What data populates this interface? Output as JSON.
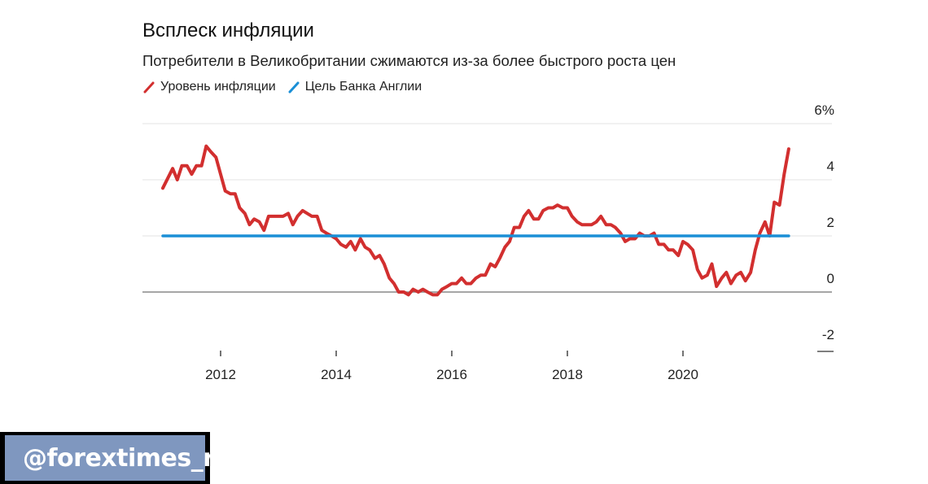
{
  "chart_data": {
    "type": "line",
    "title": "Всплеск инфляции",
    "subtitle": "Потребители в Великобритании сжимаются из-за более быстрого роста цен",
    "ylim": [
      -2,
      6
    ],
    "yticks": [
      -2,
      0,
      2,
      4,
      6
    ],
    "ytick_labels": [
      "-2",
      "0",
      "2",
      "4",
      "6%"
    ],
    "xlim": [
      2011.0,
      2022.2
    ],
    "xticks": [
      2012,
      2014,
      2016,
      2018,
      2020
    ],
    "xtick_labels": [
      "2012",
      "2014",
      "2016",
      "2018",
      "2020"
    ],
    "grid": true,
    "legend": "top-left",
    "series": [
      {
        "name": "Уровень инфляции",
        "color": "#d22f2f",
        "points": [
          [
            2011.0,
            3.7
          ],
          [
            2011.17,
            4.4
          ],
          [
            2011.25,
            4.0
          ],
          [
            2011.33,
            4.5
          ],
          [
            2011.42,
            4.5
          ],
          [
            2011.5,
            4.2
          ],
          [
            2011.58,
            4.5
          ],
          [
            2011.67,
            4.5
          ],
          [
            2011.75,
            5.2
          ],
          [
            2011.83,
            5.0
          ],
          [
            2011.92,
            4.8
          ],
          [
            2012.0,
            4.2
          ],
          [
            2012.08,
            3.6
          ],
          [
            2012.17,
            3.5
          ],
          [
            2012.25,
            3.5
          ],
          [
            2012.33,
            3.0
          ],
          [
            2012.42,
            2.8
          ],
          [
            2012.5,
            2.4
          ],
          [
            2012.58,
            2.6
          ],
          [
            2012.67,
            2.5
          ],
          [
            2012.75,
            2.2
          ],
          [
            2012.83,
            2.7
          ],
          [
            2012.92,
            2.7
          ],
          [
            2013.0,
            2.7
          ],
          [
            2013.08,
            2.7
          ],
          [
            2013.17,
            2.8
          ],
          [
            2013.25,
            2.4
          ],
          [
            2013.33,
            2.7
          ],
          [
            2013.42,
            2.9
          ],
          [
            2013.5,
            2.8
          ],
          [
            2013.58,
            2.7
          ],
          [
            2013.67,
            2.7
          ],
          [
            2013.75,
            2.2
          ],
          [
            2013.83,
            2.1
          ],
          [
            2013.92,
            2.0
          ],
          [
            2014.0,
            1.9
          ],
          [
            2014.08,
            1.7
          ],
          [
            2014.17,
            1.6
          ],
          [
            2014.25,
            1.8
          ],
          [
            2014.33,
            1.5
          ],
          [
            2014.42,
            1.9
          ],
          [
            2014.5,
            1.6
          ],
          [
            2014.58,
            1.5
          ],
          [
            2014.67,
            1.2
          ],
          [
            2014.75,
            1.3
          ],
          [
            2014.83,
            1.0
          ],
          [
            2014.92,
            0.5
          ],
          [
            2015.0,
            0.3
          ],
          [
            2015.08,
            0.0
          ],
          [
            2015.17,
            0.0
          ],
          [
            2015.25,
            -0.1
          ],
          [
            2015.33,
            0.1
          ],
          [
            2015.42,
            0.0
          ],
          [
            2015.5,
            0.1
          ],
          [
            2015.58,
            0.0
          ],
          [
            2015.67,
            -0.1
          ],
          [
            2015.75,
            -0.1
          ],
          [
            2015.83,
            0.1
          ],
          [
            2015.92,
            0.2
          ],
          [
            2016.0,
            0.3
          ],
          [
            2016.08,
            0.3
          ],
          [
            2016.17,
            0.5
          ],
          [
            2016.25,
            0.3
          ],
          [
            2016.33,
            0.3
          ],
          [
            2016.42,
            0.5
          ],
          [
            2016.5,
            0.6
          ],
          [
            2016.58,
            0.6
          ],
          [
            2016.67,
            1.0
          ],
          [
            2016.75,
            0.9
          ],
          [
            2016.83,
            1.2
          ],
          [
            2016.92,
            1.6
          ],
          [
            2017.0,
            1.8
          ],
          [
            2017.08,
            2.3
          ],
          [
            2017.17,
            2.3
          ],
          [
            2017.25,
            2.7
          ],
          [
            2017.33,
            2.9
          ],
          [
            2017.42,
            2.6
          ],
          [
            2017.5,
            2.6
          ],
          [
            2017.58,
            2.9
          ],
          [
            2017.67,
            3.0
          ],
          [
            2017.75,
            3.0
          ],
          [
            2017.83,
            3.1
          ],
          [
            2017.92,
            3.0
          ],
          [
            2018.0,
            3.0
          ],
          [
            2018.08,
            2.7
          ],
          [
            2018.17,
            2.5
          ],
          [
            2018.25,
            2.4
          ],
          [
            2018.33,
            2.4
          ],
          [
            2018.42,
            2.4
          ],
          [
            2018.5,
            2.5
          ],
          [
            2018.58,
            2.7
          ],
          [
            2018.67,
            2.4
          ],
          [
            2018.75,
            2.4
          ],
          [
            2018.83,
            2.3
          ],
          [
            2018.92,
            2.1
          ],
          [
            2019.0,
            1.8
          ],
          [
            2019.08,
            1.9
          ],
          [
            2019.17,
            1.9
          ],
          [
            2019.25,
            2.1
          ],
          [
            2019.33,
            2.0
          ],
          [
            2019.42,
            2.0
          ],
          [
            2019.5,
            2.1
          ],
          [
            2019.58,
            1.7
          ],
          [
            2019.67,
            1.7
          ],
          [
            2019.75,
            1.5
          ],
          [
            2019.83,
            1.5
          ],
          [
            2019.92,
            1.3
          ],
          [
            2020.0,
            1.8
          ],
          [
            2020.08,
            1.7
          ],
          [
            2020.17,
            1.5
          ],
          [
            2020.25,
            0.8
          ],
          [
            2020.33,
            0.5
          ],
          [
            2020.42,
            0.6
          ],
          [
            2020.5,
            1.0
          ],
          [
            2020.58,
            0.2
          ],
          [
            2020.67,
            0.5
          ],
          [
            2020.75,
            0.7
          ],
          [
            2020.83,
            0.3
          ],
          [
            2020.92,
            0.6
          ],
          [
            2021.0,
            0.7
          ],
          [
            2021.08,
            0.4
          ],
          [
            2021.17,
            0.7
          ],
          [
            2021.25,
            1.5
          ],
          [
            2021.33,
            2.1
          ],
          [
            2021.42,
            2.5
          ],
          [
            2021.5,
            2.0
          ],
          [
            2021.58,
            3.2
          ],
          [
            2021.67,
            3.1
          ],
          [
            2021.75,
            4.2
          ],
          [
            2021.83,
            5.1
          ]
        ]
      },
      {
        "name": "Цель Банка Англии",
        "color": "#1a8fd6",
        "points": [
          [
            2011.0,
            2.0
          ],
          [
            2021.83,
            2.0
          ]
        ]
      }
    ]
  },
  "watermark": {
    "handle": "@forextimes_ru",
    "heart_icon": "heart-icon"
  }
}
